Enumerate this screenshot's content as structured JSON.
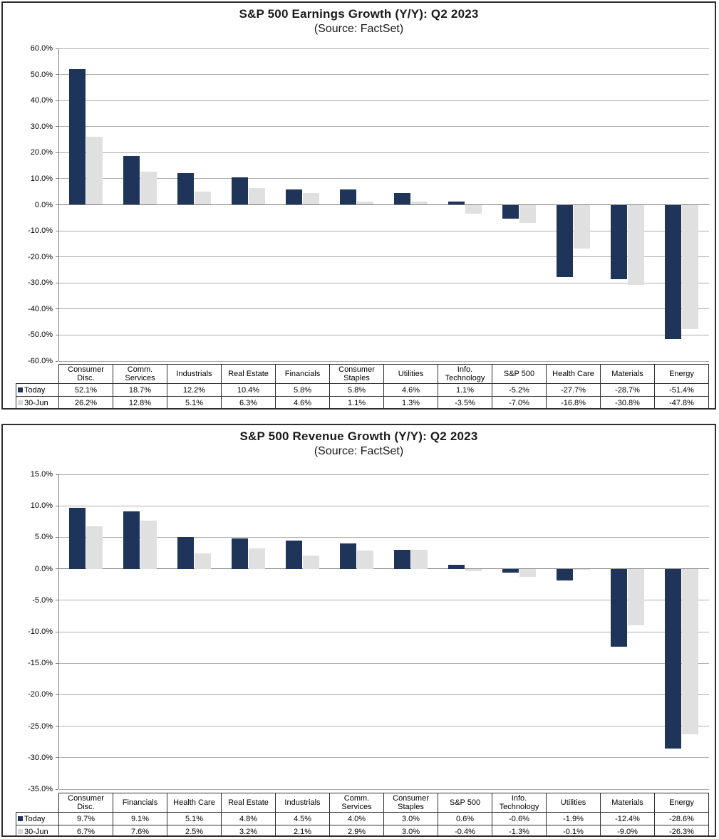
{
  "colors": {
    "bar_today": "#1F3459",
    "bar_30jun": "#E0E0E0",
    "legend_swatch_30jun": "#D9D9D9",
    "gridline": "#ADADAD",
    "zero_line": "#808080",
    "axis_line": "#808080",
    "table_border": "#2F2F2F",
    "title_text": "#1A1A1A",
    "panel_border": "#2E2E2E"
  },
  "chart_data": [
    {
      "type": "bar",
      "title": "S&P 500 Earnings Growth (Y/Y): Q2 2023",
      "subtitle": "(Source: FactSet)",
      "categories": [
        "Consumer Disc.",
        "Comm. Services",
        "Industrials",
        "Real Estate",
        "Financials",
        "Consumer Staples",
        "Utilities",
        "Info. Technology",
        "S&P 500",
        "Health Care",
        "Materials",
        "Energy"
      ],
      "series": [
        {
          "name": "Today",
          "color": "#1F3459",
          "swatch": "#1F3459",
          "values": [
            52.1,
            18.7,
            12.2,
            10.4,
            5.8,
            5.8,
            4.6,
            1.1,
            -5.2,
            -27.7,
            -28.7,
            -51.4
          ]
        },
        {
          "name": "30-Jun",
          "color": "#E0E0E0",
          "swatch": "#D9D9D9",
          "values": [
            26.2,
            12.8,
            5.1,
            6.3,
            4.6,
            1.1,
            1.3,
            -3.5,
            -7.0,
            -16.8,
            -30.8,
            -47.8
          ]
        }
      ],
      "ylim": [
        -60,
        60
      ],
      "ytick_step": 10,
      "ytick_format": "percent_1dp",
      "grid": true,
      "legend_position": "table-rows-left"
    },
    {
      "type": "bar",
      "title": "S&P 500 Revenue Growth (Y/Y): Q2 2023",
      "subtitle": "(Source: FactSet)",
      "categories": [
        "Consumer Disc.",
        "Financials",
        "Health Care",
        "Real Estate",
        "Industrials",
        "Comm. Services",
        "Consumer Staples",
        "S&P 500",
        "Info. Technology",
        "Utilities",
        "Materials",
        "Energy"
      ],
      "series": [
        {
          "name": "Today",
          "color": "#1F3459",
          "swatch": "#1F3459",
          "values": [
            9.7,
            9.1,
            5.1,
            4.8,
            4.5,
            4.0,
            3.0,
            0.6,
            -0.6,
            -1.9,
            -12.4,
            -28.6
          ]
        },
        {
          "name": "30-Jun",
          "color": "#E0E0E0",
          "swatch": "#D9D9D9",
          "values": [
            6.7,
            7.6,
            2.5,
            3.2,
            2.1,
            2.9,
            3.0,
            -0.4,
            -1.3,
            -0.1,
            -9.0,
            -26.3
          ]
        }
      ],
      "ylim": [
        -35,
        15
      ],
      "ytick_step": 5,
      "ytick_format": "percent_1dp",
      "grid": true,
      "legend_position": "table-rows-left"
    }
  ]
}
